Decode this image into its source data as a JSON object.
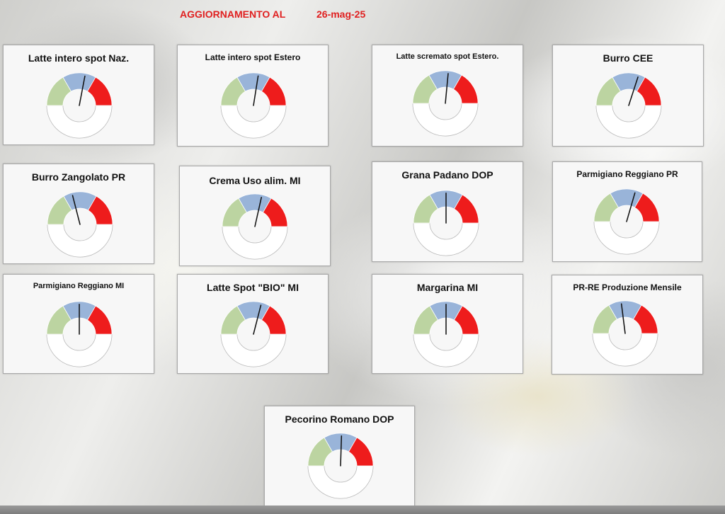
{
  "header": {
    "label": "AGGIORNAMENTO AL",
    "date": "26-mag-25"
  },
  "colors": {
    "green": "#bcd4a1",
    "blue": "#99b4d9",
    "red": "#ee1c1c",
    "needle": "#111111",
    "title_red": "#e02020"
  },
  "gauges": [
    {
      "title": "Latte intero spot Naz.",
      "needle_fraction": 0.56
    },
    {
      "title": "Latte intero spot Estero",
      "needle_fraction": 0.55
    },
    {
      "title": "Latte scremato spot Estero.",
      "needle_fraction": 0.53
    },
    {
      "title": "Burro CEE",
      "needle_fraction": 0.6
    },
    {
      "title": "Burro Zangolato PR",
      "needle_fraction": 0.42
    },
    {
      "title": "Crema Uso alim. MI",
      "needle_fraction": 0.57
    },
    {
      "title": "Grana Padano DOP",
      "needle_fraction": 0.5
    },
    {
      "title": "Parmigiano Reggiano PR",
      "needle_fraction": 0.59
    },
    {
      "title": "Parmigiano Reggiano MI",
      "needle_fraction": 0.5
    },
    {
      "title": "Latte Spot \"BIO\" MI",
      "needle_fraction": 0.58
    },
    {
      "title": "Margarina MI",
      "needle_fraction": 0.5
    },
    {
      "title": "PR-RE Produzione Mensile",
      "needle_fraction": 0.46
    },
    {
      "title": "Pecorino Romano DOP",
      "needle_fraction": 0.51
    }
  ]
}
